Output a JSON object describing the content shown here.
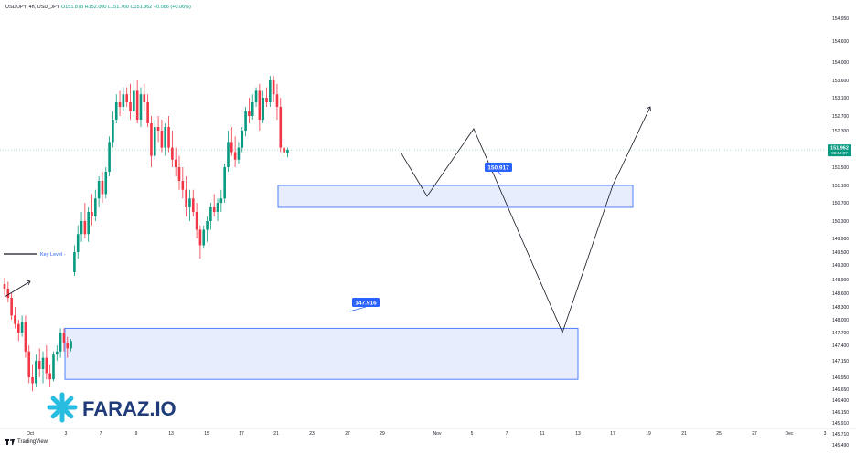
{
  "header": {
    "symbol": "USD/JPY, 4h, USD_JPY",
    "ohlc": "O151.878  H152.000  L151.760  C151.962  +0.086 (+0.06%)"
  },
  "footer": {
    "brand": "TradingView"
  },
  "watermark": {
    "text": "FARAZ.IO",
    "colors": [
      "#27bde0",
      "#1f3b7a"
    ],
    "icon": "snowflake-logo-icon"
  },
  "price_tag": {
    "price": "151.962",
    "countdown": "03:12:07",
    "color": "#089981"
  },
  "key_level": {
    "label": "Key Level -",
    "color": "#2962ff"
  },
  "colors": {
    "up": "#089981",
    "down": "#f23645",
    "zone_fill": "#e8edfd",
    "zone_stroke": "#2962ff"
  },
  "chart_data": {
    "type": "candlestick",
    "instrument": "USD/JPY",
    "timeframe": "4h",
    "y_ticks": [
      "154.950",
      "154.600",
      "154.000",
      "153.600",
      "153.100",
      "152.700",
      "152.300",
      "151.962",
      "151.500",
      "151.100",
      "150.700",
      "150.300",
      "149.900",
      "149.500",
      "149.300",
      "148.900",
      "148.600",
      "148.300",
      "148.000",
      "147.700",
      "147.400",
      "147.150",
      "146.950",
      "146.650",
      "146.400",
      "146.150",
      "145.910",
      "145.710",
      "145.490"
    ],
    "x_ticks": [
      "Oct",
      "3",
      "7",
      "9",
      "13",
      "15",
      "17",
      "21",
      "23",
      "27",
      "29",
      "Nov",
      "5",
      "7",
      "11",
      "13",
      "17",
      "19",
      "21",
      "25",
      "27",
      "Dec",
      "3"
    ],
    "candles": [
      [
        148.8,
        148.95,
        148.55,
        148.7
      ],
      [
        148.7,
        148.85,
        148.4,
        148.5
      ],
      [
        148.5,
        148.6,
        148.0,
        148.1
      ],
      [
        148.1,
        148.3,
        147.8,
        147.9
      ],
      [
        147.9,
        148.0,
        147.5,
        147.7
      ],
      [
        147.7,
        148.1,
        147.6,
        147.95
      ],
      [
        147.95,
        148.1,
        147.2,
        147.3
      ],
      [
        147.3,
        147.4,
        146.8,
        146.95
      ],
      [
        146.95,
        147.1,
        146.6,
        146.8
      ],
      [
        146.8,
        147.25,
        146.7,
        147.15
      ],
      [
        147.15,
        147.35,
        146.95,
        147.05
      ],
      [
        147.05,
        147.3,
        146.8,
        147.2
      ],
      [
        147.2,
        147.4,
        146.9,
        147.0
      ],
      [
        147.0,
        147.1,
        146.7,
        146.9
      ],
      [
        146.9,
        147.3,
        146.85,
        147.25
      ],
      [
        147.25,
        147.4,
        147.15,
        147.3
      ],
      [
        147.3,
        147.8,
        147.2,
        147.7
      ],
      [
        147.7,
        147.8,
        147.3,
        147.45
      ],
      [
        147.45,
        147.6,
        147.2,
        147.35
      ],
      [
        147.35,
        147.55,
        147.3,
        147.5
      ],
      [
        149.1,
        149.7,
        149.0,
        149.5
      ],
      [
        149.5,
        150.2,
        149.4,
        150.0
      ],
      [
        150.0,
        150.5,
        149.8,
        150.3
      ],
      [
        150.3,
        150.7,
        149.9,
        150.0
      ],
      [
        150.0,
        150.6,
        149.8,
        150.5
      ],
      [
        150.5,
        150.9,
        150.2,
        150.4
      ],
      [
        150.4,
        151.0,
        150.3,
        150.8
      ],
      [
        150.8,
        151.3,
        150.6,
        151.2
      ],
      [
        151.2,
        151.4,
        150.7,
        150.9
      ],
      [
        150.9,
        151.5,
        150.8,
        151.4
      ],
      [
        151.4,
        152.2,
        151.3,
        152.1
      ],
      [
        152.1,
        152.8,
        152.0,
        152.6
      ],
      [
        152.6,
        153.2,
        152.5,
        153.0
      ],
      [
        153.0,
        153.3,
        152.7,
        152.9
      ],
      [
        152.9,
        153.4,
        152.8,
        153.2
      ],
      [
        153.2,
        153.4,
        152.9,
        153.0
      ],
      [
        153.0,
        153.5,
        152.6,
        152.8
      ],
      [
        152.8,
        153.6,
        152.7,
        153.3
      ],
      [
        153.3,
        153.6,
        152.5,
        152.6
      ],
      [
        152.6,
        153.4,
        152.4,
        153.2
      ],
      [
        153.2,
        153.5,
        152.8,
        153.0
      ],
      [
        153.0,
        153.2,
        152.4,
        152.5
      ],
      [
        152.5,
        152.7,
        151.5,
        151.8
      ],
      [
        151.8,
        152.6,
        151.7,
        152.4
      ],
      [
        152.4,
        152.7,
        152.1,
        152.3
      ],
      [
        152.3,
        152.6,
        151.9,
        152.0
      ],
      [
        152.0,
        152.5,
        151.8,
        152.4
      ],
      [
        152.4,
        152.7,
        151.9,
        152.0
      ],
      [
        152.0,
        152.3,
        151.5,
        151.7
      ],
      [
        151.7,
        152.0,
        151.3,
        151.5
      ],
      [
        151.5,
        151.8,
        151.0,
        151.2
      ],
      [
        151.2,
        151.5,
        150.8,
        151.0
      ],
      [
        151.0,
        151.3,
        150.4,
        150.6
      ],
      [
        150.6,
        151.0,
        150.3,
        150.8
      ],
      [
        150.8,
        151.0,
        150.4,
        150.5
      ],
      [
        150.5,
        150.7,
        149.9,
        150.1
      ],
      [
        150.1,
        150.2,
        149.4,
        149.7
      ],
      [
        149.7,
        150.2,
        149.6,
        150.1
      ],
      [
        150.1,
        150.4,
        149.8,
        150.3
      ],
      [
        150.3,
        150.7,
        150.1,
        150.6
      ],
      [
        150.6,
        150.9,
        150.4,
        150.5
      ],
      [
        150.5,
        150.8,
        150.3,
        150.7
      ],
      [
        150.7,
        151.0,
        150.5,
        150.8
      ],
      [
        150.8,
        151.6,
        150.7,
        151.5
      ],
      [
        151.5,
        152.3,
        151.4,
        152.1
      ],
      [
        152.1,
        152.4,
        151.8,
        151.9
      ],
      [
        151.9,
        152.2,
        151.5,
        151.7
      ],
      [
        151.7,
        152.1,
        151.6,
        152.0
      ],
      [
        152.0,
        152.4,
        151.9,
        152.3
      ],
      [
        152.3,
        152.9,
        152.2,
        152.8
      ],
      [
        152.8,
        153.1,
        152.5,
        152.7
      ],
      [
        152.7,
        153.2,
        152.6,
        153.0
      ],
      [
        153.0,
        153.4,
        152.9,
        153.3
      ],
      [
        153.3,
        153.5,
        152.3,
        152.6
      ],
      [
        152.6,
        153.3,
        152.5,
        153.1
      ],
      [
        153.1,
        153.4,
        152.9,
        153.0
      ],
      [
        153.0,
        153.7,
        152.9,
        153.6
      ],
      [
        153.6,
        153.7,
        153.0,
        153.2
      ],
      [
        153.2,
        153.5,
        152.6,
        152.9
      ],
      [
        152.9,
        153.1,
        151.9,
        152.0
      ],
      [
        152.0,
        152.1,
        151.76,
        151.88
      ],
      [
        151.88,
        152.0,
        151.76,
        151.96
      ]
    ],
    "zones": [
      {
        "label": "150.917",
        "top": 151.1,
        "bottom": 150.6
      },
      {
        "label": "147.916",
        "top": 147.8,
        "bottom": 146.9
      }
    ],
    "projection": [
      [
        152.02,
        151.9
      ],
      [
        152.82,
        150.85
      ],
      [
        153.89,
        152.35
      ],
      [
        155.17,
        147.7
      ],
      [
        156.32,
        151.1
      ],
      [
        157.35,
        152.9
      ]
    ]
  }
}
